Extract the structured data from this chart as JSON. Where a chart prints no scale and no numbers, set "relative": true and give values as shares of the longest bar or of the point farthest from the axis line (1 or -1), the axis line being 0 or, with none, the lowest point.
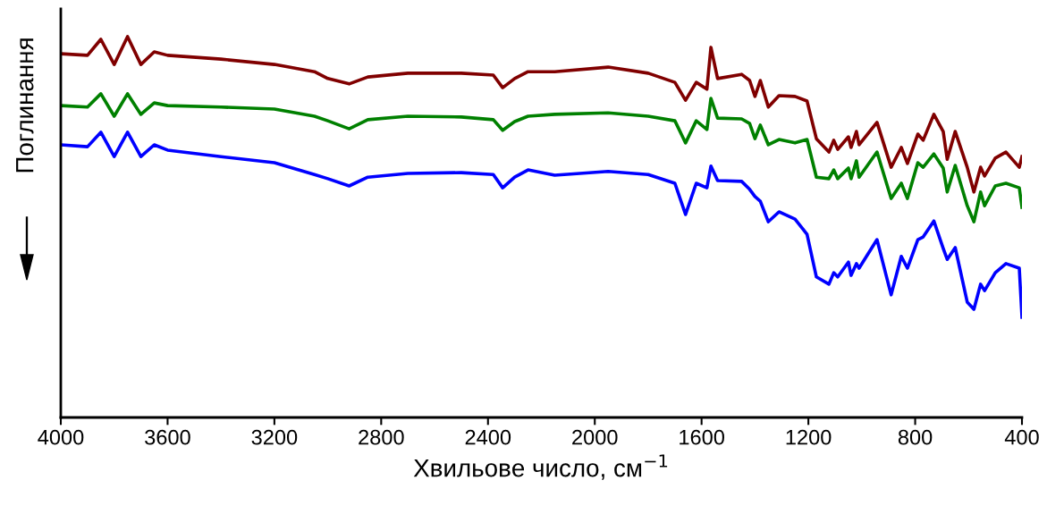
{
  "chart_data": {
    "type": "line",
    "relative": true,
    "xlabel": "Хвильове число, см$^{−1}$",
    "ylabel": "Поглинання",
    "xlim": [
      4000,
      400
    ],
    "xticks": [
      4000,
      3600,
      3200,
      2800,
      2400,
      2000,
      1600,
      1200,
      800,
      400
    ],
    "grid": false,
    "legend": false,
    "marker": "none",
    "line_style": "solid",
    "x": [
      4000,
      3900,
      3850,
      3800,
      3750,
      3700,
      3650,
      3600,
      3400,
      3200,
      3050,
      3000,
      2920,
      2850,
      2700,
      2500,
      2380,
      2345,
      2300,
      2250,
      2150,
      1950,
      1800,
      1700,
      1660,
      1620,
      1580,
      1565,
      1540,
      1450,
      1420,
      1400,
      1380,
      1350,
      1310,
      1250,
      1205,
      1170,
      1123,
      1105,
      1090,
      1050,
      1040,
      1020,
      1010,
      943,
      890,
      852,
      829,
      790,
      770,
      730,
      695,
      680,
      650,
      605,
      580,
      555,
      540,
      500,
      460,
      410,
      400
    ],
    "series": [
      {
        "color": "#800000",
        "values": [
          0.955,
          0.951,
          0.993,
          0.927,
          1.0,
          0.927,
          0.96,
          0.951,
          0.941,
          0.927,
          0.908,
          0.89,
          0.876,
          0.894,
          0.904,
          0.904,
          0.899,
          0.866,
          0.89,
          0.908,
          0.908,
          0.92,
          0.904,
          0.88,
          0.833,
          0.88,
          0.862,
          0.972,
          0.89,
          0.901,
          0.885,
          0.843,
          0.885,
          0.815,
          0.845,
          0.843,
          0.831,
          0.732,
          0.697,
          0.728,
          0.704,
          0.737,
          0.709,
          0.751,
          0.716,
          0.775,
          0.657,
          0.709,
          0.667,
          0.744,
          0.728,
          0.796,
          0.751,
          0.678,
          0.751,
          0.657,
          0.592,
          0.657,
          0.634,
          0.681,
          0.697,
          0.657,
          0.685
        ]
      },
      {
        "color": "#008000",
        "values": [
          0.819,
          0.815,
          0.85,
          0.791,
          0.85,
          0.796,
          0.826,
          0.819,
          0.815,
          0.81,
          0.791,
          0.779,
          0.758,
          0.782,
          0.791,
          0.789,
          0.782,
          0.754,
          0.777,
          0.791,
          0.796,
          0.8,
          0.791,
          0.779,
          0.721,
          0.779,
          0.756,
          0.838,
          0.786,
          0.784,
          0.772,
          0.732,
          0.768,
          0.716,
          0.73,
          0.721,
          0.73,
          0.631,
          0.627,
          0.65,
          0.627,
          0.655,
          0.627,
          0.674,
          0.631,
          0.697,
          0.575,
          0.615,
          0.575,
          0.669,
          0.657,
          0.692,
          0.655,
          0.592,
          0.662,
          0.556,
          0.514,
          0.592,
          0.556,
          0.608,
          0.615,
          0.603,
          0.552
        ]
      },
      {
        "color": "#0000ff",
        "values": [
          0.716,
          0.711,
          0.749,
          0.685,
          0.749,
          0.685,
          0.716,
          0.702,
          0.685,
          0.669,
          0.638,
          0.627,
          0.608,
          0.631,
          0.641,
          0.643,
          0.638,
          0.603,
          0.631,
          0.65,
          0.636,
          0.646,
          0.638,
          0.615,
          0.533,
          0.615,
          0.603,
          0.66,
          0.622,
          0.62,
          0.599,
          0.58,
          0.568,
          0.514,
          0.54,
          0.521,
          0.481,
          0.369,
          0.35,
          0.38,
          0.369,
          0.408,
          0.373,
          0.404,
          0.392,
          0.467,
          0.322,
          0.423,
          0.392,
          0.467,
          0.474,
          0.516,
          0.444,
          0.415,
          0.446,
          0.303,
          0.284,
          0.35,
          0.333,
          0.38,
          0.404,
          0.392,
          0.263
        ]
      }
    ]
  }
}
